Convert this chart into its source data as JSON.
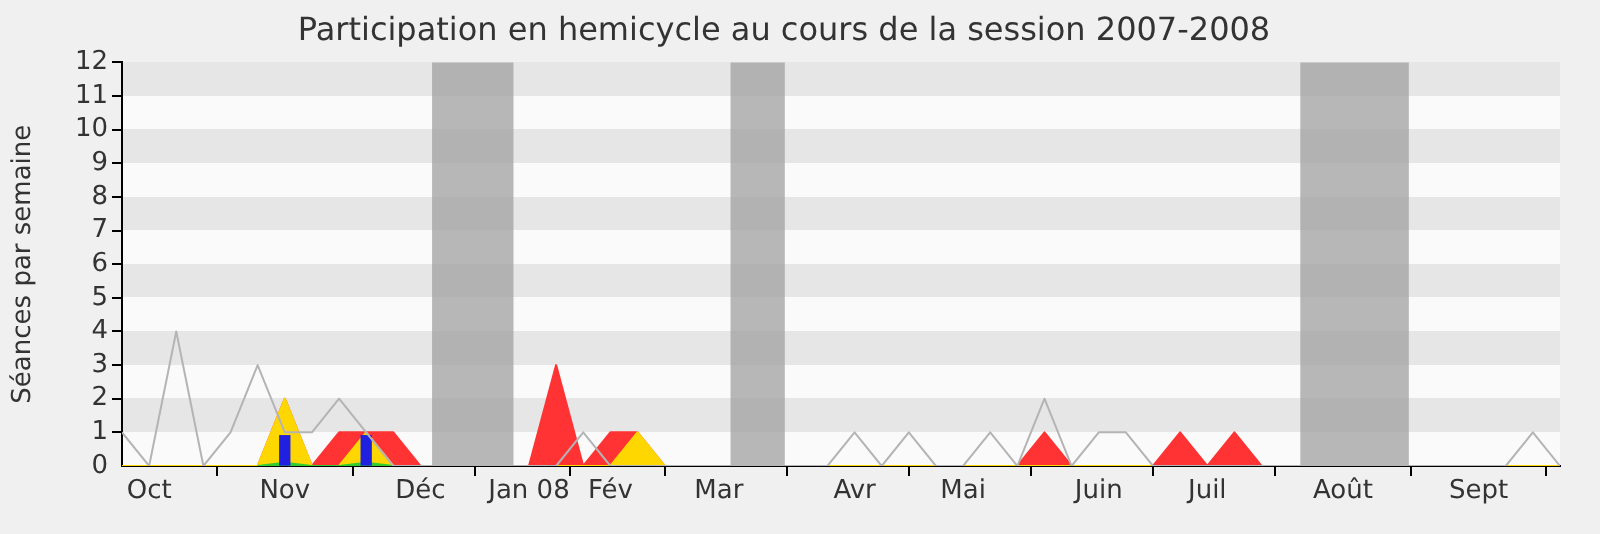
{
  "chart_data": {
    "type": "area",
    "title": "Participation en hemicycle au cours de la session 2007-2008",
    "ylabel": "Séances par semaine",
    "x": [
      "2007-10-01",
      "2007-10-08",
      "2007-10-15",
      "2007-10-22",
      "2007-10-29",
      "2007-11-05",
      "2007-11-12",
      "2007-11-19",
      "2007-11-26",
      "2007-12-03",
      "2007-12-10",
      "2007-12-17",
      "2007-12-24",
      "2007-12-31",
      "2008-01-07",
      "2008-01-14",
      "2008-01-21",
      "2008-01-28",
      "2008-02-04",
      "2008-02-11",
      "2008-02-18",
      "2008-02-25",
      "2008-03-03",
      "2008-03-10",
      "2008-03-17",
      "2008-03-24",
      "2008-03-31",
      "2008-04-07",
      "2008-04-14",
      "2008-04-21",
      "2008-04-28",
      "2008-05-05",
      "2008-05-12",
      "2008-05-19",
      "2008-05-26",
      "2008-06-02",
      "2008-06-09",
      "2008-06-16",
      "2008-06-23",
      "2008-06-30",
      "2008-07-07",
      "2008-07-14",
      "2008-07-21",
      "2008-07-28",
      "2008-08-04",
      "2008-08-11",
      "2008-08-18",
      "2008-08-25",
      "2008-09-01",
      "2008-09-08",
      "2008-09-15",
      "2008-09-22",
      "2008-09-29",
      "2008-10-06"
    ],
    "series": [
      {
        "type": "line",
        "color": "#b4b4b4",
        "values": [
          1,
          0,
          4,
          0,
          1,
          3,
          1,
          1,
          2,
          1,
          0,
          0,
          0,
          0,
          0,
          0,
          0,
          1,
          0,
          0,
          0,
          0,
          0,
          0,
          0,
          0,
          0,
          1,
          0,
          1,
          0,
          0,
          1,
          0,
          2,
          0,
          1,
          1,
          0,
          0,
          0,
          0,
          0,
          0,
          0,
          0,
          0,
          0,
          0,
          0,
          0,
          0,
          1,
          0
        ]
      },
      {
        "color": "#ff3333",
        "values": [
          0,
          0,
          0,
          0,
          0,
          0,
          2,
          0,
          1,
          1,
          1,
          0,
          0,
          0,
          0,
          0,
          3,
          0,
          1,
          1,
          0,
          0,
          0,
          0,
          0,
          0,
          0,
          0,
          0,
          0,
          0,
          0,
          0,
          0,
          1,
          0,
          0,
          0,
          0,
          1,
          0,
          1,
          0,
          0,
          0,
          0,
          0,
          0,
          0,
          0,
          0,
          0,
          0,
          0
        ]
      },
      {
        "color": "#ffd700",
        "values": [
          0,
          0,
          0,
          0,
          0,
          0,
          2,
          0,
          0,
          1,
          0,
          0,
          0,
          0,
          0,
          0,
          0,
          0,
          0,
          1,
          0,
          0,
          0,
          0,
          0,
          0,
          0,
          0,
          0,
          0,
          0,
          0,
          0,
          0,
          0,
          0,
          0,
          0,
          0,
          0,
          0,
          0,
          0,
          0,
          0,
          0,
          0,
          0,
          0,
          0,
          0,
          0,
          0,
          0
        ]
      },
      {
        "color": "#33cc33",
        "x": [
          "2007-11-05",
          "2007-11-12",
          "2007-11-19",
          "2007-11-26",
          "2007-12-03",
          "2007-12-10"
        ],
        "values": [
          0,
          0.1,
          0,
          0,
          0.1,
          0
        ]
      },
      {
        "type": "bar",
        "color": "#2020e0",
        "x": [
          "2007-11-12",
          "2007-12-03"
        ],
        "values": [
          0.9,
          0.9
        ]
      }
    ],
    "bands": [
      {
        "axis": "x",
        "from": "2007-12-20",
        "to": "2008-01-10",
        "color": "#a0a0a0"
      },
      {
        "axis": "x",
        "from": "2008-03-06",
        "to": "2008-03-20",
        "color": "#a0a0a0"
      },
      {
        "axis": "x",
        "from": "2008-07-31",
        "to": "2008-08-28",
        "color": "#a0a0a0"
      }
    ],
    "xlim": [
      "2007-10-01",
      "2008-10-06"
    ],
    "xticks": [
      {
        "value": "2007-10-08",
        "label": "Oct"
      },
      {
        "value": "2007-11-12",
        "label": "Nov"
      },
      {
        "value": "2007-12-17",
        "label": "Déc"
      },
      {
        "value": "2008-01-14",
        "label": "Jan 08"
      },
      {
        "value": "2008-02-04",
        "label": "Fév"
      },
      {
        "value": "2008-03-03",
        "label": "Mar"
      },
      {
        "value": "2008-04-07",
        "label": "Avr"
      },
      {
        "value": "2008-05-05",
        "label": "Mai"
      },
      {
        "value": "2008-06-09",
        "label": "Juin"
      },
      {
        "value": "2008-07-07",
        "label": "Juil"
      },
      {
        "value": "2008-08-11",
        "label": "Août"
      },
      {
        "value": "2008-09-15",
        "label": "Sept"
      }
    ],
    "ylim": [
      0,
      12
    ],
    "yticks": [
      0,
      1,
      2,
      3,
      4,
      5,
      6,
      7,
      8,
      9,
      10,
      11,
      12
    ],
    "legend": false
  }
}
